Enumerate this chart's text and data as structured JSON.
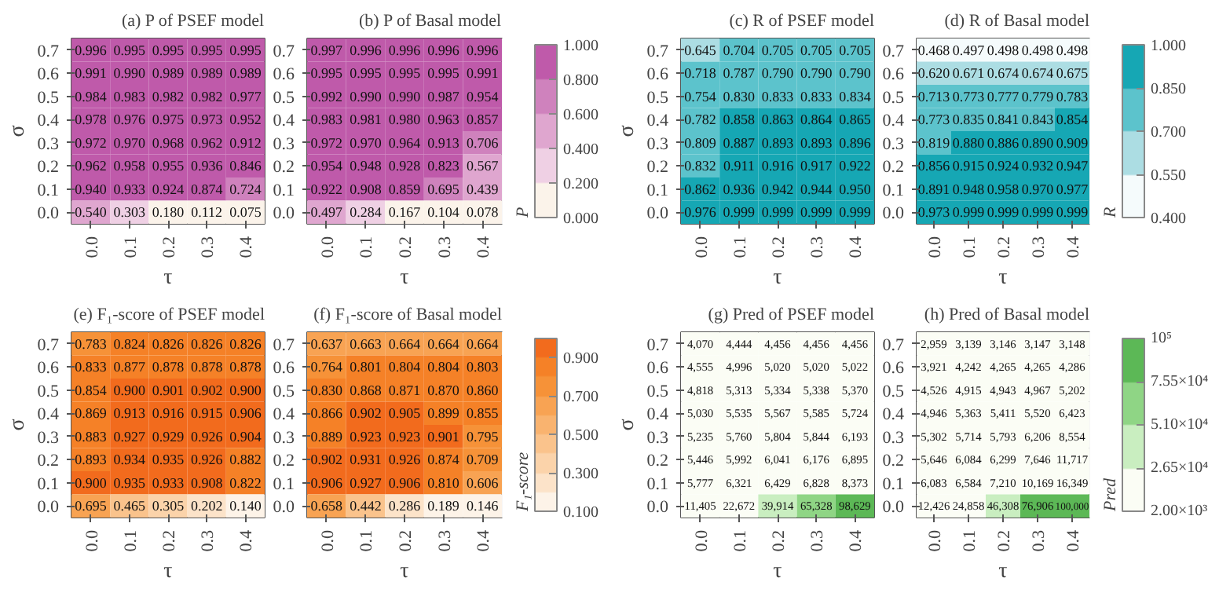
{
  "chart_data": [
    {
      "type": "heatmap",
      "title": "(a) P of PSEF model",
      "xlabel": "τ",
      "ylabel": "σ",
      "categories": [
        "0.0",
        "0.1",
        "0.2",
        "0.3",
        "0.4"
      ],
      "y_categories": [
        "0.7",
        "0.6",
        "0.5",
        "0.4",
        "0.3",
        "0.2",
        "0.1",
        "0.0"
      ],
      "colors": [
        "#fbf3ea",
        "#efd0e4",
        "#dfa6cf",
        "#cf82bd",
        "#bf5aaa"
      ],
      "cell_labels": [
        [
          "0.996",
          "0.995",
          "0.995",
          "0.995",
          "0.995"
        ],
        [
          "0.991",
          "0.990",
          "0.989",
          "0.989",
          "0.989"
        ],
        [
          "0.984",
          "0.983",
          "0.982",
          "0.982",
          "0.977"
        ],
        [
          "0.978",
          "0.976",
          "0.975",
          "0.973",
          "0.952"
        ],
        [
          "0.972",
          "0.970",
          "0.968",
          "0.962",
          "0.912"
        ],
        [
          "0.962",
          "0.958",
          "0.955",
          "0.936",
          "0.846"
        ],
        [
          "0.940",
          "0.933",
          "0.924",
          "0.874",
          "0.724"
        ],
        [
          "0.540",
          "0.303",
          "0.180",
          "0.112",
          "0.075"
        ]
      ],
      "cells": [
        [
          0.996,
          0.995,
          0.995,
          0.995,
          0.995
        ],
        [
          0.991,
          0.99,
          0.989,
          0.989,
          0.989
        ],
        [
          0.984,
          0.983,
          0.982,
          0.982,
          0.977
        ],
        [
          0.978,
          0.976,
          0.975,
          0.973,
          0.952
        ],
        [
          0.972,
          0.97,
          0.968,
          0.962,
          0.912
        ],
        [
          0.962,
          0.958,
          0.955,
          0.936,
          0.846
        ],
        [
          0.94,
          0.933,
          0.924,
          0.874,
          0.724
        ],
        [
          0.54,
          0.303,
          0.18,
          0.112,
          0.075
        ]
      ]
    },
    {
      "type": "heatmap",
      "title": "(b) P of Basal model",
      "xlabel": "τ",
      "clabel": "P",
      "categories": [
        "0.0",
        "0.1",
        "0.2",
        "0.3",
        "0.4"
      ],
      "y_categories": [
        "0.7",
        "0.6",
        "0.5",
        "0.4",
        "0.3",
        "0.2",
        "0.1",
        "0.0"
      ],
      "clim": [
        0,
        1
      ],
      "cticks": [
        {
          "value": 0,
          "label": "0.000"
        },
        {
          "value": 0.2,
          "label": "0.200"
        },
        {
          "value": 0.4,
          "label": "0.400"
        },
        {
          "value": 0.6,
          "label": "0.600"
        },
        {
          "value": 0.8,
          "label": "0.800"
        },
        {
          "value": 1,
          "label": "1.000"
        }
      ],
      "colors": [
        "#fbf3ea",
        "#efd0e4",
        "#dfa6cf",
        "#cf82bd",
        "#bf5aaa"
      ],
      "cell_labels": [
        [
          "0.997",
          "0.996",
          "0.996",
          "0.996",
          "0.996"
        ],
        [
          "0.995",
          "0.995",
          "0.995",
          "0.995",
          "0.991"
        ],
        [
          "0.992",
          "0.990",
          "0.990",
          "0.987",
          "0.954"
        ],
        [
          "0.983",
          "0.981",
          "0.980",
          "0.963",
          "0.857"
        ],
        [
          "0.972",
          "0.970",
          "0.964",
          "0.913",
          "0.706"
        ],
        [
          "0.954",
          "0.948",
          "0.928",
          "0.823",
          "0.567"
        ],
        [
          "0.922",
          "0.908",
          "0.859",
          "0.695",
          "0.439"
        ],
        [
          "0.497",
          "0.284",
          "0.167",
          "0.104",
          "0.078"
        ]
      ],
      "cells": [
        [
          0.997,
          0.996,
          0.996,
          0.996,
          0.996
        ],
        [
          0.995,
          0.995,
          0.995,
          0.995,
          0.991
        ],
        [
          0.992,
          0.99,
          0.99,
          0.987,
          0.954
        ],
        [
          0.983,
          0.981,
          0.98,
          0.963,
          0.857
        ],
        [
          0.972,
          0.97,
          0.964,
          0.913,
          0.706
        ],
        [
          0.954,
          0.948,
          0.928,
          0.823,
          0.567
        ],
        [
          0.922,
          0.908,
          0.859,
          0.695,
          0.439
        ],
        [
          0.497,
          0.284,
          0.167,
          0.104,
          0.078
        ]
      ]
    },
    {
      "type": "heatmap",
      "title": "(c) R of PSEF model",
      "xlabel": "τ",
      "ylabel": "σ",
      "categories": [
        "0.0",
        "0.1",
        "0.2",
        "0.3",
        "0.4"
      ],
      "y_categories": [
        "0.7",
        "0.6",
        "0.5",
        "0.4",
        "0.3",
        "0.2",
        "0.1",
        "0.0"
      ],
      "colors": [
        "#f5fbfc",
        "#acdde3",
        "#5cc3cc",
        "#16a7b4"
      ],
      "cell_labels": [
        [
          "0.645",
          "0.704",
          "0.705",
          "0.705",
          "0.705"
        ],
        [
          "0.718",
          "0.787",
          "0.790",
          "0.790",
          "0.790"
        ],
        [
          "0.754",
          "0.830",
          "0.833",
          "0.833",
          "0.834"
        ],
        [
          "0.782",
          "0.858",
          "0.863",
          "0.864",
          "0.865"
        ],
        [
          "0.809",
          "0.887",
          "0.893",
          "0.893",
          "0.896"
        ],
        [
          "0.832",
          "0.911",
          "0.916",
          "0.917",
          "0.922"
        ],
        [
          "0.862",
          "0.936",
          "0.942",
          "0.944",
          "0.950"
        ],
        [
          "0.976",
          "0.999",
          "0.999",
          "0.999",
          "0.999"
        ]
      ],
      "cells": [
        [
          0.645,
          0.704,
          0.705,
          0.705,
          0.705
        ],
        [
          0.718,
          0.787,
          0.79,
          0.79,
          0.79
        ],
        [
          0.754,
          0.83,
          0.833,
          0.833,
          0.834
        ],
        [
          0.782,
          0.858,
          0.863,
          0.864,
          0.865
        ],
        [
          0.809,
          0.887,
          0.893,
          0.893,
          0.896
        ],
        [
          0.832,
          0.911,
          0.916,
          0.917,
          0.922
        ],
        [
          0.862,
          0.936,
          0.942,
          0.944,
          0.95
        ],
        [
          0.976,
          0.999,
          0.999,
          0.999,
          0.999
        ]
      ]
    },
    {
      "type": "heatmap",
      "title": "(d) R of Basal model",
      "xlabel": "τ",
      "clabel": "R",
      "categories": [
        "0.0",
        "0.1",
        "0.2",
        "0.3",
        "0.4"
      ],
      "y_categories": [
        "0.7",
        "0.6",
        "0.5",
        "0.4",
        "0.3",
        "0.2",
        "0.1",
        "0.0"
      ],
      "clim": [
        0.4,
        1
      ],
      "cticks": [
        {
          "value": 0.4,
          "label": "0.400"
        },
        {
          "value": 0.55,
          "label": "0.550"
        },
        {
          "value": 0.7,
          "label": "0.700"
        },
        {
          "value": 0.85,
          "label": "0.850"
        },
        {
          "value": 1,
          "label": "1.000"
        }
      ],
      "colors": [
        "#f5fbfc",
        "#acdde3",
        "#5cc3cc",
        "#16a7b4"
      ],
      "cell_labels": [
        [
          "0.468",
          "0.497",
          "0.498",
          "0.498",
          "0.498"
        ],
        [
          "0.620",
          "0.671",
          "0.674",
          "0.674",
          "0.675"
        ],
        [
          "0.713",
          "0.773",
          "0.777",
          "0.779",
          "0.783"
        ],
        [
          "0.773",
          "0.835",
          "0.841",
          "0.843",
          "0.854"
        ],
        [
          "0.819",
          "0.880",
          "0.886",
          "0.890",
          "0.909"
        ],
        [
          "0.856",
          "0.915",
          "0.924",
          "0.932",
          "0.947"
        ],
        [
          "0.891",
          "0.948",
          "0.958",
          "0.970",
          "0.977"
        ],
        [
          "0.973",
          "0.999",
          "0.999",
          "0.999",
          "0.999"
        ]
      ],
      "cells": [
        [
          0.468,
          0.497,
          0.498,
          0.498,
          0.498
        ],
        [
          0.62,
          0.671,
          0.674,
          0.674,
          0.675
        ],
        [
          0.713,
          0.773,
          0.777,
          0.779,
          0.783
        ],
        [
          0.773,
          0.835,
          0.841,
          0.843,
          0.854
        ],
        [
          0.819,
          0.88,
          0.886,
          0.89,
          0.909
        ],
        [
          0.856,
          0.915,
          0.924,
          0.932,
          0.947
        ],
        [
          0.891,
          0.948,
          0.958,
          0.97,
          0.977
        ],
        [
          0.973,
          0.999,
          0.999,
          0.999,
          0.999
        ]
      ]
    },
    {
      "type": "heatmap",
      "title": "(e) F₁-score of PSEF model",
      "xlabel": "τ",
      "ylabel": "σ",
      "categories": [
        "0.0",
        "0.1",
        "0.2",
        "0.3",
        "0.4"
      ],
      "y_categories": [
        "0.7",
        "0.6",
        "0.5",
        "0.4",
        "0.3",
        "0.2",
        "0.1",
        "0.0"
      ],
      "colors": [
        "#fdf3e8",
        "#fce3c9",
        "#fbd3aa",
        "#fac38c",
        "#f9b36f",
        "#f8a353",
        "#f69238",
        "#f58127",
        "#f26b1d"
      ],
      "cell_labels": [
        [
          "0.783",
          "0.824",
          "0.826",
          "0.826",
          "0.826"
        ],
        [
          "0.833",
          "0.877",
          "0.878",
          "0.878",
          "0.878"
        ],
        [
          "0.854",
          "0.900",
          "0.901",
          "0.902",
          "0.900"
        ],
        [
          "0.869",
          "0.913",
          "0.916",
          "0.915",
          "0.906"
        ],
        [
          "0.883",
          "0.927",
          "0.929",
          "0.926",
          "0.904"
        ],
        [
          "0.893",
          "0.934",
          "0.935",
          "0.926",
          "0.882"
        ],
        [
          "0.900",
          "0.935",
          "0.933",
          "0.908",
          "0.822"
        ],
        [
          "0.695",
          "0.465",
          "0.305",
          "0.202",
          "0.140"
        ]
      ],
      "cells": [
        [
          0.783,
          0.824,
          0.826,
          0.826,
          0.826
        ],
        [
          0.833,
          0.877,
          0.878,
          0.878,
          0.878
        ],
        [
          0.854,
          0.9,
          0.901,
          0.902,
          0.9
        ],
        [
          0.869,
          0.913,
          0.916,
          0.915,
          0.906
        ],
        [
          0.883,
          0.927,
          0.929,
          0.926,
          0.904
        ],
        [
          0.893,
          0.934,
          0.935,
          0.926,
          0.882
        ],
        [
          0.9,
          0.935,
          0.933,
          0.908,
          0.822
        ],
        [
          0.695,
          0.465,
          0.305,
          0.202,
          0.14
        ]
      ]
    },
    {
      "type": "heatmap",
      "title": "(f) F₁-score of Basal model",
      "xlabel": "τ",
      "clabel": "F₁-score",
      "categories": [
        "0.0",
        "0.1",
        "0.2",
        "0.3",
        "0.4"
      ],
      "y_categories": [
        "0.7",
        "0.6",
        "0.5",
        "0.4",
        "0.3",
        "0.2",
        "0.1",
        "0.0"
      ],
      "clim": [
        0.1,
        1
      ],
      "cticks": [
        {
          "value": 0.1,
          "label": "0.100"
        },
        {
          "value": 0.3,
          "label": "0.300"
        },
        {
          "value": 0.5,
          "label": "0.500"
        },
        {
          "value": 0.7,
          "label": "0.700"
        },
        {
          "value": 0.9,
          "label": "0.900"
        }
      ],
      "colors": [
        "#fdf3e8",
        "#fce3c9",
        "#fbd3aa",
        "#fac38c",
        "#f9b36f",
        "#f8a353",
        "#f69238",
        "#f58127",
        "#f26b1d"
      ],
      "cell_labels": [
        [
          "0.637",
          "0.663",
          "0.664",
          "0.664",
          "0.664"
        ],
        [
          "0.764",
          "0.801",
          "0.804",
          "0.804",
          "0.803"
        ],
        [
          "0.830",
          "0.868",
          "0.871",
          "0.870",
          "0.860"
        ],
        [
          "0.866",
          "0.902",
          "0.905",
          "0.899",
          "0.855"
        ],
        [
          "0.889",
          "0.923",
          "0.923",
          "0.901",
          "0.795"
        ],
        [
          "0.902",
          "0.931",
          "0.926",
          "0.874",
          "0.709"
        ],
        [
          "0.906",
          "0.927",
          "0.906",
          "0.810",
          "0.606"
        ],
        [
          "0.658",
          "0.442",
          "0.286",
          "0.189",
          "0.146"
        ]
      ],
      "cells": [
        [
          0.637,
          0.663,
          0.664,
          0.664,
          0.664
        ],
        [
          0.764,
          0.801,
          0.804,
          0.804,
          0.803
        ],
        [
          0.83,
          0.868,
          0.871,
          0.87,
          0.86
        ],
        [
          0.866,
          0.902,
          0.905,
          0.899,
          0.855
        ],
        [
          0.889,
          0.923,
          0.923,
          0.901,
          0.795
        ],
        [
          0.902,
          0.931,
          0.926,
          0.874,
          0.709
        ],
        [
          0.906,
          0.927,
          0.906,
          0.81,
          0.606
        ],
        [
          0.658,
          0.442,
          0.286,
          0.189,
          0.146
        ]
      ]
    },
    {
      "type": "heatmap",
      "title": "(g) Pred of PSEF model",
      "xlabel": "τ",
      "ylabel": "σ",
      "categories": [
        "0.0",
        "0.1",
        "0.2",
        "0.3",
        "0.4"
      ],
      "y_categories": [
        "0.7",
        "0.6",
        "0.5",
        "0.4",
        "0.3",
        "0.2",
        "0.1",
        "0.0"
      ],
      "colors": [
        "#fbfdf5",
        "#c9eec0",
        "#8fd585",
        "#5cb856"
      ],
      "cells": [
        [
          4070,
          4444,
          4456,
          4456,
          4456
        ],
        [
          4555,
          4996,
          5020,
          5020,
          5022
        ],
        [
          4818,
          5313,
          5334,
          5338,
          5370
        ],
        [
          5030,
          5535,
          5567,
          5585,
          5724
        ],
        [
          5235,
          5760,
          5804,
          5844,
          6193
        ],
        [
          5446,
          5992,
          6041,
          6176,
          6895
        ],
        [
          5777,
          6321,
          6429,
          6828,
          8373
        ],
        [
          11405,
          22672,
          39914,
          65328,
          98629
        ]
      ],
      "cell_labels": [
        [
          "4,070",
          "4,444",
          "4,456",
          "4,456",
          "4,456"
        ],
        [
          "4,555",
          "4,996",
          "5,020",
          "5,020",
          "5,022"
        ],
        [
          "4,818",
          "5,313",
          "5,334",
          "5,338",
          "5,370"
        ],
        [
          "5,030",
          "5,535",
          "5,567",
          "5,585",
          "5,724"
        ],
        [
          "5,235",
          "5,760",
          "5,804",
          "5,844",
          "6,193"
        ],
        [
          "5,446",
          "5,992",
          "6,041",
          "6,176",
          "6,895"
        ],
        [
          "5,777",
          "6,321",
          "6,429",
          "6,828",
          "8,373"
        ],
        [
          "11,405",
          "22,672",
          "39,914",
          "65,328",
          "98,629"
        ]
      ]
    },
    {
      "type": "heatmap",
      "title": "(h) Pred of Basal model",
      "xlabel": "τ",
      "clabel": "Pred",
      "categories": [
        "0.0",
        "0.1",
        "0.2",
        "0.3",
        "0.4"
      ],
      "y_categories": [
        "0.7",
        "0.6",
        "0.5",
        "0.4",
        "0.3",
        "0.2",
        "0.1",
        "0.0"
      ],
      "clim": [
        2000,
        100000
      ],
      "cticks": [
        {
          "value": 2000,
          "label": "2.00×10³"
        },
        {
          "value": 26500,
          "label": "2.65×10⁴"
        },
        {
          "value": 51000,
          "label": "5.10×10⁴"
        },
        {
          "value": 75500,
          "label": "7.55×10⁴"
        },
        {
          "value": 100000,
          "label": "10⁵"
        }
      ],
      "colors": [
        "#fbfdf5",
        "#c9eec0",
        "#8fd585",
        "#5cb856"
      ],
      "cells": [
        [
          2959,
          3139,
          3146,
          3147,
          3148
        ],
        [
          3921,
          4242,
          4265,
          4265,
          4286
        ],
        [
          4526,
          4915,
          4943,
          4967,
          5202
        ],
        [
          4946,
          5363,
          5411,
          5520,
          6423
        ],
        [
          5302,
          5714,
          5793,
          6206,
          8554
        ],
        [
          5646,
          6084,
          6299,
          7646,
          11717
        ],
        [
          6083,
          6584,
          7210,
          10169,
          16349
        ],
        [
          12426,
          24858,
          46308,
          76906,
          100000
        ]
      ],
      "cell_labels": [
        [
          "2,959",
          "3,139",
          "3,146",
          "3,147",
          "3,148"
        ],
        [
          "3,921",
          "4,242",
          "4,265",
          "4,265",
          "4,286"
        ],
        [
          "4,526",
          "4,915",
          "4,943",
          "4,967",
          "5,202"
        ],
        [
          "4,946",
          "5,363",
          "5,411",
          "5,520",
          "6,423"
        ],
        [
          "5,302",
          "5,714",
          "5,793",
          "6,206",
          "8,554"
        ],
        [
          "5,646",
          "6,084",
          "6,299",
          "7,646",
          "11,717"
        ],
        [
          "6,083",
          "6,584",
          "7,210",
          "10,169",
          "16,349"
        ],
        [
          "12,426",
          "24,858",
          "46,308",
          "76,906",
          "100,000"
        ]
      ]
    }
  ]
}
